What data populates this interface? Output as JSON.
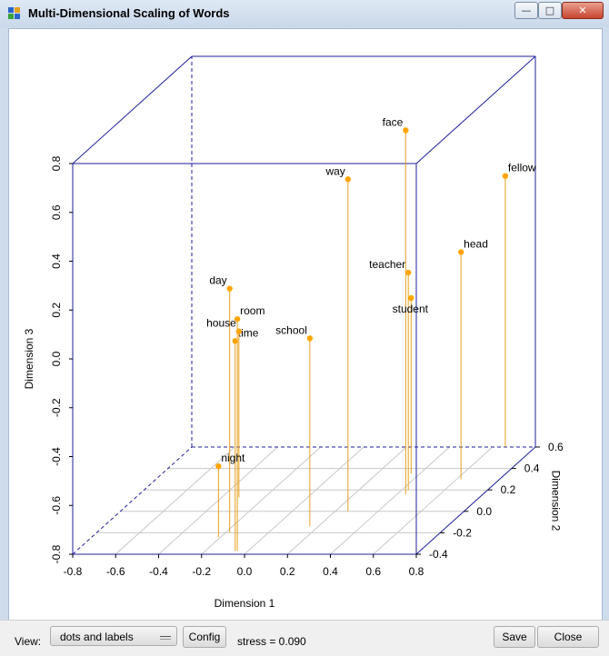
{
  "window": {
    "title": "Multi-Dimensional Scaling of Words",
    "minimize_glyph": "—",
    "maximize_glyph": "□",
    "close_glyph": "✕"
  },
  "statusbar": {
    "view_label": "View:",
    "view_value": "dots and labels",
    "config_label": "Config",
    "stress_text": "stress = 0.090",
    "save_label": "Save",
    "close_label": "Close"
  },
  "colors": {
    "point": "#ffa500",
    "stem": "#e6a11c",
    "box": "#1f1f9a",
    "grid": "#c8c8c8"
  },
  "chart_data": {
    "type": "scatter",
    "subtype": "3d-scatter-with-stems",
    "title": "",
    "xlabel": "Dimension 1",
    "ylabel": "Dimension 2",
    "zlabel": "Dimension 3",
    "xlim": [
      -0.8,
      0.8
    ],
    "ylim": [
      -0.4,
      0.6
    ],
    "zlim": [
      -0.8,
      0.8
    ],
    "xticks": [
      "-0.8",
      "-0.6",
      "-0.4",
      "-0.2",
      "0.0",
      "0.2",
      "0.4",
      "0.6",
      "0.8"
    ],
    "yticks": [
      "-0.4",
      "-0.2",
      "0.0",
      "0.2",
      "0.4",
      "0.6"
    ],
    "zticks": [
      "-0.8",
      "-0.6",
      "-0.4",
      "-0.2",
      "0.0",
      "0.2",
      "0.4",
      "0.6",
      "0.8"
    ],
    "points": [
      {
        "label": "face",
        "x": 0.44,
        "y": 0.16,
        "z": 0.69
      },
      {
        "label": "way",
        "x": 0.26,
        "y": 0.0,
        "z": 0.56
      },
      {
        "label": "day",
        "x": -0.18,
        "y": -0.2,
        "z": 0.2
      },
      {
        "label": "room",
        "x": -0.05,
        "y": -0.37,
        "z": 0.15
      },
      {
        "label": "time",
        "x": -0.06,
        "y": -0.37,
        "z": 0.06
      },
      {
        "label": "teacher",
        "x": 0.43,
        "y": 0.2,
        "z": 0.09
      },
      {
        "label": "fellow",
        "x": 0.66,
        "y": 0.6,
        "z": 0.31
      },
      {
        "label": "head",
        "x": 0.62,
        "y": 0.3,
        "z": 0.13
      },
      {
        "label": "school",
        "x": 0.16,
        "y": -0.14,
        "z": -0.03
      },
      {
        "label": "student",
        "x": 0.36,
        "y": 0.35,
        "z": -0.08
      },
      {
        "label": "house",
        "x": -0.32,
        "y": 0.13,
        "z": -0.12
      },
      {
        "label": "night",
        "x": -0.21,
        "y": -0.24,
        "z": -0.51
      }
    ],
    "label_side": [
      "left",
      "left",
      "left",
      "right",
      "right",
      "left",
      "right",
      "right",
      "left",
      "below",
      "left",
      "right"
    ],
    "grid": true,
    "legend": "none"
  }
}
